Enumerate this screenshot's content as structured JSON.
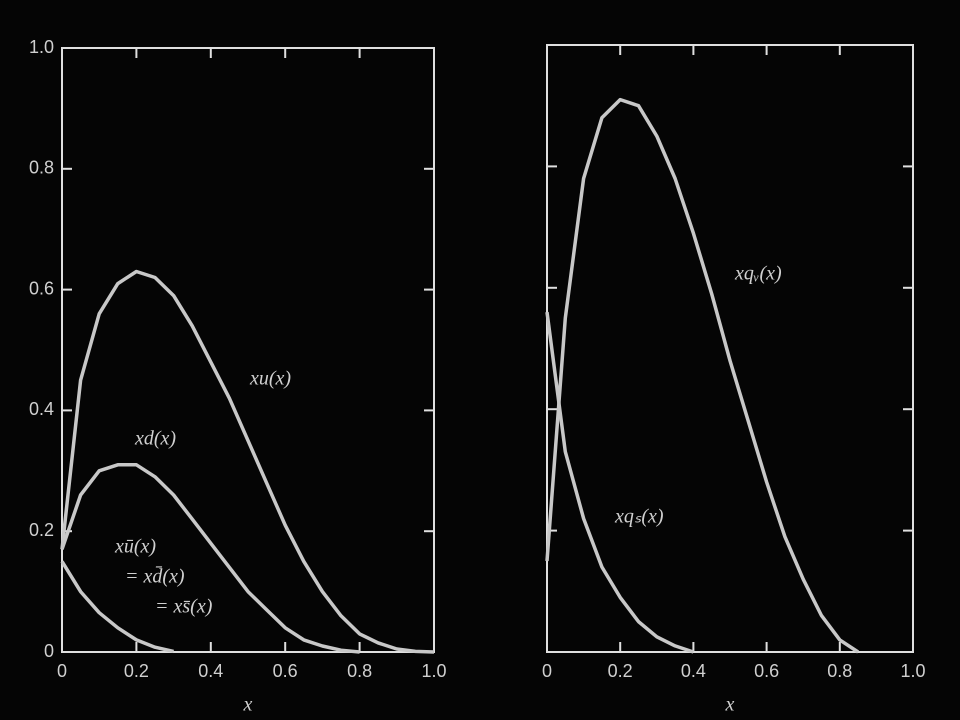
{
  "chart_data": [
    {
      "type": "line",
      "x": [
        0,
        0.05,
        0.1,
        0.15,
        0.2,
        0.25,
        0.3,
        0.35,
        0.4,
        0.45,
        0.5,
        0.55,
        0.6,
        0.65,
        0.7,
        0.75,
        0.8,
        0.85,
        0.9,
        0.95,
        1.0
      ],
      "series": [
        {
          "color": "#c8c8c8",
          "values": [
            0.17,
            0.45,
            0.56,
            0.61,
            0.63,
            0.62,
            0.59,
            0.54,
            0.48,
            0.42,
            0.35,
            0.28,
            0.21,
            0.15,
            0.1,
            0.06,
            0.03,
            0.015,
            0.005,
            0.001,
            0
          ]
        },
        {
          "color": "#c8c8c8",
          "values": [
            0.17,
            0.26,
            0.3,
            0.31,
            0.31,
            0.29,
            0.26,
            0.22,
            0.18,
            0.14,
            0.1,
            0.07,
            0.04,
            0.02,
            0.01,
            0.003,
            0,
            null,
            null,
            null,
            null
          ]
        },
        {
          "color": "#c8c8c8",
          "values": [
            0.15,
            0.1,
            0.065,
            0.04,
            0.02,
            0.008,
            0.001,
            null,
            null,
            null,
            null,
            null,
            null,
            null,
            null,
            null,
            null,
            null,
            null,
            null,
            null
          ]
        }
      ],
      "annotations": [
        "xu(x)",
        "xd(x)",
        "xū(x)",
        "= xd̄(x)",
        "= xs̄(x)"
      ],
      "x_label": "x",
      "xlim": [
        0,
        1
      ],
      "ylim": [
        0,
        1
      ],
      "xticks": [
        0,
        0.2,
        0.4,
        0.6,
        0.8,
        {
          "value": 1,
          "label": "1.0"
        }
      ],
      "yticks": [
        0,
        0.2,
        0.4,
        0.6,
        0.8,
        {
          "value": 1,
          "label": "1.0"
        }
      ],
      "show_ytick_labels": true
    },
    {
      "type": "line",
      "x": [
        0,
        0.05,
        0.1,
        0.15,
        0.2,
        0.25,
        0.3,
        0.35,
        0.4,
        0.45,
        0.5,
        0.55,
        0.6,
        0.65,
        0.7,
        0.75,
        0.8,
        0.85
      ],
      "series": [
        {
          "color": "#c8c8c8",
          "values": [
            0.15,
            0.55,
            0.78,
            0.88,
            0.91,
            0.9,
            0.85,
            0.78,
            0.69,
            0.59,
            0.48,
            0.38,
            0.28,
            0.19,
            0.12,
            0.06,
            0.02,
            0
          ]
        },
        {
          "color": "#c8c8c8",
          "values": [
            0.56,
            0.33,
            0.22,
            0.14,
            0.09,
            0.05,
            0.025,
            0.01,
            0,
            null,
            null,
            null,
            null,
            null,
            null,
            null,
            null,
            null
          ]
        }
      ],
      "annotations": [
        "xqᵥ(x)",
        "xqₛ(x)"
      ],
      "x_label": "x",
      "xlim": [
        0,
        1
      ],
      "ylim": [
        0,
        1
      ],
      "xticks": [
        0,
        0.2,
        0.4,
        0.6,
        0.8,
        {
          "value": 1,
          "label": "1.0"
        }
      ],
      "yticks": [
        0,
        0.2,
        0.4,
        0.6,
        0.8,
        {
          "value": 1,
          "label": "1.0"
        }
      ],
      "show_ytick_labels": false
    }
  ]
}
